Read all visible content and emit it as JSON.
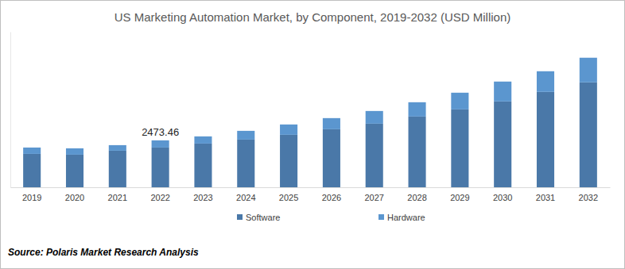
{
  "chart_data": {
    "type": "bar",
    "title": "US Marketing Automation Market, by Component, 2019-2032 (USD Million)",
    "source": "Source: Polaris Market Research Analysis",
    "categories": [
      "2019",
      "2020",
      "2021",
      "2022",
      "2023",
      "2024",
      "2025",
      "2026",
      "2027",
      "2028",
      "2029",
      "2030",
      "2031",
      "2032"
    ],
    "series": [
      {
        "name": "Software",
        "color": "#4a78a8",
        "values": [
          1760,
          1718,
          1928,
          2095,
          2305,
          2514,
          2766,
          3059,
          3352,
          3729,
          4106,
          4525,
          5028,
          5531
        ]
      },
      {
        "name": "Hardware",
        "color": "#5b96cf",
        "values": [
          335,
          335,
          293,
          378.46,
          377,
          461,
          545,
          587,
          670,
          754,
          880,
          1048,
          1089,
          1299
        ]
      }
    ],
    "annotations": [
      {
        "x": "2022",
        "y": 2473.46,
        "text": "2473.46"
      }
    ],
    "ylim": [
      0,
      8200
    ],
    "yticks": [],
    "tick_labels": "x",
    "stacked": true,
    "grid": false,
    "legend": "bottom"
  }
}
